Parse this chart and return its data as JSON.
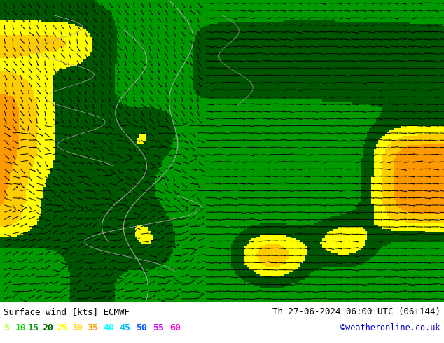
{
  "title_left": "Surface wind [kts] ECMWF",
  "title_right": "Th 27-06-2024 06:00 UTC (06+144)",
  "copyright": "©weatheronline.co.uk",
  "legend_values": [
    "5",
    "10",
    "15",
    "20",
    "25",
    "30",
    "35",
    "40",
    "45",
    "50",
    "55",
    "60"
  ],
  "legend_colors": [
    "#adff2f",
    "#00dd00",
    "#009900",
    "#006600",
    "#ffff00",
    "#ffcc00",
    "#ff9900",
    "#00ffff",
    "#00bbff",
    "#0055ff",
    "#cc00ff",
    "#ff00cc"
  ],
  "colormap_colors": [
    "#adff2f",
    "#adff2f",
    "#44ee00",
    "#009900",
    "#005500",
    "#ffff00",
    "#ffcc00",
    "#ff9900",
    "#00eeee",
    "#00bbff",
    "#0044cc",
    "#bb00ff",
    "#ff00bb"
  ],
  "colormap_bounds": [
    0,
    5,
    10,
    15,
    20,
    25,
    30,
    35,
    40,
    45,
    50,
    55,
    60,
    999
  ],
  "background_color": "#ffffff",
  "figsize": [
    6.34,
    4.9
  ],
  "dpi": 100
}
